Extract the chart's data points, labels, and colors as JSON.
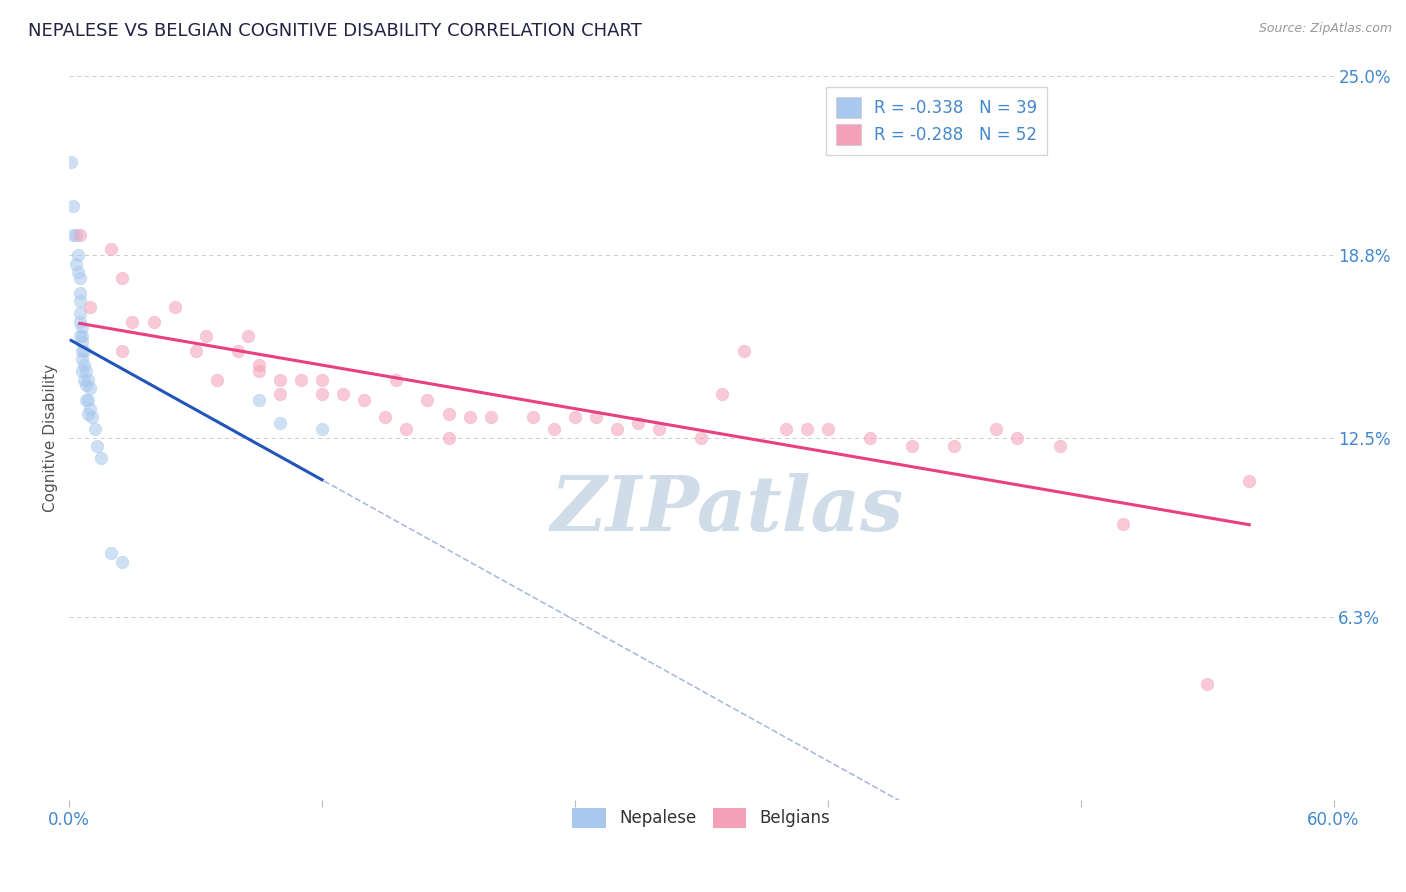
{
  "title": "NEPALESE VS BELGIAN COGNITIVE DISABILITY CORRELATION CHART",
  "source": "Source: ZipAtlas.com",
  "ylabel": "Cognitive Disability",
  "xlim": [
    0.0,
    0.6
  ],
  "ylim": [
    0.0,
    0.25
  ],
  "xticks": [
    0.0,
    0.12,
    0.24,
    0.36,
    0.48,
    0.6
  ],
  "xticklabels": [
    "0.0%",
    "",
    "",
    "",
    "",
    "60.0%"
  ],
  "yticks_right": [
    0.0,
    0.063,
    0.125,
    0.188,
    0.25
  ],
  "ytick_labels_right": [
    "",
    "6.3%",
    "12.5%",
    "18.8%",
    "25.0%"
  ],
  "grid_color": "#cccccc",
  "background_color": "#ffffff",
  "nepalese_color": "#a8c8ee",
  "belgian_color": "#f4a0b8",
  "nepalese_line_color": "#2255bb",
  "belgian_line_color": "#e84080",
  "dashed_line_color": "#aabbdd",
  "legend_label_nep": "R = -0.338   N = 39",
  "legend_label_bel": "R = -0.288   N = 52",
  "title_color": "#222244",
  "axis_label_color": "#555555",
  "right_tick_color": "#4488cc",
  "watermark_text": "ZIPatlas",
  "watermark_color": "#d0dde8",
  "marker_size": 9,
  "alpha_scatter": 0.55,
  "nepalese_x": [
    0.001,
    0.002,
    0.002,
    0.003,
    0.003,
    0.004,
    0.004,
    0.005,
    0.005,
    0.005,
    0.005,
    0.005,
    0.005,
    0.006,
    0.006,
    0.006,
    0.006,
    0.006,
    0.006,
    0.007,
    0.007,
    0.007,
    0.008,
    0.008,
    0.008,
    0.009,
    0.009,
    0.009,
    0.01,
    0.01,
    0.011,
    0.012,
    0.013,
    0.015,
    0.02,
    0.025,
    0.09,
    0.1,
    0.12
  ],
  "nepalese_y": [
    0.22,
    0.205,
    0.195,
    0.195,
    0.185,
    0.188,
    0.182,
    0.18,
    0.175,
    0.172,
    0.168,
    0.165,
    0.16,
    0.163,
    0.16,
    0.158,
    0.155,
    0.152,
    0.148,
    0.155,
    0.15,
    0.145,
    0.148,
    0.143,
    0.138,
    0.145,
    0.138,
    0.133,
    0.142,
    0.135,
    0.132,
    0.128,
    0.122,
    0.118,
    0.085,
    0.082,
    0.138,
    0.13,
    0.128
  ],
  "belgian_x": [
    0.005,
    0.01,
    0.02,
    0.025,
    0.025,
    0.03,
    0.04,
    0.05,
    0.06,
    0.065,
    0.07,
    0.08,
    0.085,
    0.09,
    0.09,
    0.1,
    0.1,
    0.11,
    0.12,
    0.12,
    0.13,
    0.14,
    0.15,
    0.155,
    0.16,
    0.17,
    0.18,
    0.18,
    0.19,
    0.2,
    0.22,
    0.23,
    0.24,
    0.25,
    0.26,
    0.27,
    0.28,
    0.3,
    0.31,
    0.32,
    0.34,
    0.35,
    0.36,
    0.38,
    0.4,
    0.42,
    0.44,
    0.45,
    0.47,
    0.5,
    0.54,
    0.56
  ],
  "belgian_y": [
    0.195,
    0.17,
    0.19,
    0.155,
    0.18,
    0.165,
    0.165,
    0.17,
    0.155,
    0.16,
    0.145,
    0.155,
    0.16,
    0.148,
    0.15,
    0.145,
    0.14,
    0.145,
    0.145,
    0.14,
    0.14,
    0.138,
    0.132,
    0.145,
    0.128,
    0.138,
    0.133,
    0.125,
    0.132,
    0.132,
    0.132,
    0.128,
    0.132,
    0.132,
    0.128,
    0.13,
    0.128,
    0.125,
    0.14,
    0.155,
    0.128,
    0.128,
    0.128,
    0.125,
    0.122,
    0.122,
    0.128,
    0.125,
    0.122,
    0.095,
    0.04,
    0.11
  ],
  "nep_trend_x0": 0.001,
  "nep_trend_x1": 0.12,
  "bel_trend_x0": 0.005,
  "bel_trend_x1": 0.56,
  "dash_trend_x0": 0.0,
  "dash_trend_x1": 0.6
}
